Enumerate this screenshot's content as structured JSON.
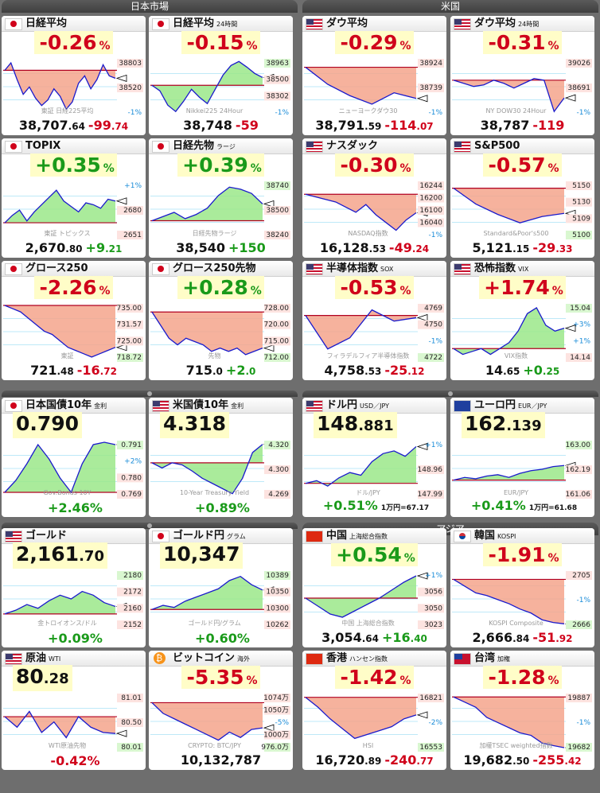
{
  "headers": {
    "japan": "日本市場",
    "us": "米国",
    "asia": "アジア"
  },
  "tiles": [
    {
      "id": "nikkei",
      "name": "日経平均",
      "sub": "",
      "flag": "jp",
      "change": "-0.26",
      "pct": "%",
      "price_int": "38,707",
      "price_dec": ".64",
      "diff_int": "-99",
      "diff_dec": ".74",
      "up": false,
      "right_labels": [
        "38803",
        "38520",
        "-1%"
      ],
      "watermark": "東証 日経225平均"
    },
    {
      "id": "nikkei24",
      "name": "日経平均",
      "sub": "24時間",
      "flag": "jp",
      "change": "-0.15",
      "pct": "%",
      "price_int": "38,748",
      "price_dec": "",
      "diff_int": "-59",
      "diff_dec": "",
      "up": false,
      "right_labels": [
        "38963",
        "38500",
        "38302",
        "-1%"
      ],
      "watermark": "Nikkei225 24Hour"
    },
    {
      "id": "dow",
      "name": "ダウ平均",
      "sub": "",
      "flag": "us",
      "change": "-0.29",
      "pct": "%",
      "price_int": "38,791",
      "price_dec": ".59",
      "diff_int": "-114",
      "diff_dec": ".07",
      "up": false,
      "right_labels": [
        "38924",
        "38739",
        "-1%"
      ],
      "watermark": "ニューヨークダウ30"
    },
    {
      "id": "dow24",
      "name": "ダウ平均",
      "sub": "24時間",
      "flag": "us",
      "change": "-0.31",
      "pct": "%",
      "price_int": "38,787",
      "price_dec": "",
      "diff_int": "-119",
      "diff_dec": "",
      "up": false,
      "right_labels": [
        "39026",
        "38691",
        "-1%"
      ],
      "watermark": "NY DOW30 24Hour"
    },
    {
      "id": "topix",
      "name": "TOPIX",
      "sub": "",
      "flag": "jp",
      "change": "+0.35",
      "pct": "%",
      "price_int": "2,670",
      "price_dec": ".80",
      "diff_int": "+9",
      "diff_dec": ".21",
      "up": true,
      "right_labels": [
        "+1%",
        "2680",
        "2651"
      ],
      "watermark": "東証 トピックス"
    },
    {
      "id": "nkfut",
      "name": "日経先物",
      "sub": "ラージ",
      "flag": "jp",
      "change": "+0.39",
      "pct": "%",
      "price_int": "38,540",
      "price_dec": "",
      "diff_int": "+150",
      "diff_dec": "",
      "up": true,
      "right_labels": [
        "38740",
        "38500",
        "38240"
      ],
      "watermark": "日経先物ラージ"
    },
    {
      "id": "nasdaq",
      "name": "ナスダック",
      "sub": "",
      "flag": "us",
      "change": "-0.30",
      "pct": "%",
      "price_int": "16,128",
      "price_dec": ".53",
      "diff_int": "-49",
      "diff_dec": ".24",
      "up": false,
      "right_labels": [
        "16244",
        "16200",
        "16100",
        "16040",
        "-1%"
      ],
      "watermark": "NASDAQ指数"
    },
    {
      "id": "sp500",
      "name": "S&P500",
      "sub": "",
      "flag": "us",
      "change": "-0.57",
      "pct": "%",
      "price_int": "5,121",
      "price_dec": ".15",
      "diff_int": "-29",
      "diff_dec": ".33",
      "up": false,
      "right_labels": [
        "5150",
        "5130",
        "5109",
        "5100"
      ],
      "watermark": "Standard&Poor's500"
    },
    {
      "id": "growth",
      "name": "グロース250",
      "sub": "",
      "flag": "jp",
      "change": "-2.26",
      "pct": "%",
      "price_int": "721",
      "price_dec": ".48",
      "diff_int": "-16",
      "diff_dec": ".72",
      "up": false,
      "right_labels": [
        "735.00",
        "731.57",
        "725.00",
        "718.72"
      ],
      "watermark": "東証"
    },
    {
      "id": "growthfut",
      "name": "グロース250先物",
      "sub": "",
      "flag": "jp",
      "change": "+0.28",
      "pct": "%",
      "price_int": "715",
      "price_dec": ".0",
      "diff_int": "+2",
      "diff_dec": ".0",
      "up": true,
      "right_labels": [
        "728.00",
        "720.00",
        "715.00",
        "712.00"
      ],
      "watermark": "先物"
    },
    {
      "id": "sox",
      "name": "半導体指数",
      "sub": "SOX",
      "flag": "us",
      "change": "-0.53",
      "pct": "%",
      "price_int": "4,758",
      "price_dec": ".53",
      "diff_int": "-25",
      "diff_dec": ".12",
      "up": false,
      "right_labels": [
        "4769",
        "4750",
        "-1%",
        "4722"
      ],
      "watermark": "フィラデルフィア半導体指数"
    },
    {
      "id": "vix",
      "name": "恐怖指数",
      "sub": "VIX",
      "flag": "us",
      "change": "+1.74",
      "pct": "%",
      "price_int": "14",
      "price_dec": ".65",
      "diff_int": "+0",
      "diff_dec": ".25",
      "up": true,
      "red_up": true,
      "right_labels": [
        "15.04",
        "+3%",
        "+1%",
        "14.14"
      ],
      "watermark": "VIX指数"
    },
    {
      "id": "jgb10",
      "name": "日本国債10年",
      "sub": "金利",
      "flag": "jp",
      "value_int": "0.790",
      "value_dec": "",
      "foot": "+2.46",
      "foot_pct": "%",
      "up": true,
      "right_labels": [
        "0.791",
        "+2%",
        "0.780",
        "0.769"
      ],
      "watermark": "Gov.Bonds 10Y"
    },
    {
      "id": "ust10",
      "name": "米国債10年",
      "sub": "金利",
      "flag": "us",
      "value_int": "4.318",
      "value_dec": "",
      "foot": "+0.89",
      "foot_pct": "%",
      "up": true,
      "right_labels": [
        "4.320",
        "4.300",
        "4.269"
      ],
      "watermark": "10-Year Treasury Yield"
    },
    {
      "id": "usdjpy",
      "name": "ドル円",
      "sub": "USD／JPY",
      "flag": "us",
      "value_int": "148",
      "value_dec": ".881",
      "foot": "+0.51",
      "foot_pct": "%",
      "extra": "1万円=67.17",
      "up": true,
      "right_labels": [
        "+1%",
        "148.96",
        "147.99"
      ],
      "watermark": "ドル/JPY"
    },
    {
      "id": "eurjpy",
      "name": "ユーロ円",
      "sub": "EUR／JPY",
      "flag": "eu",
      "value_int": "162",
      "value_dec": ".139",
      "foot": "+0.41",
      "foot_pct": "%",
      "extra": "1万円=61.68",
      "up": true,
      "right_labels": [
        "163.00",
        "162.19",
        "161.06"
      ],
      "watermark": "EUR/JPY"
    },
    {
      "id": "gold",
      "name": "ゴールド",
      "sub": "",
      "flag": "us",
      "value_int": "2,161",
      "value_dec": ".70",
      "foot": "+0.09",
      "foot_pct": "%",
      "up": true,
      "right_labels": [
        "2180",
        "2172",
        "2160",
        "2152"
      ],
      "watermark": "金トロイオンス/ドル"
    },
    {
      "id": "goldjpy",
      "name": "ゴールド円",
      "sub": "グラム",
      "flag": "jp",
      "value_int": "10,347",
      "value_dec": "",
      "foot": "+0.60",
      "foot_pct": "%",
      "up": true,
      "right_labels": [
        "10389",
        "10350",
        "10300",
        "10262"
      ],
      "watermark": "ゴールド円/グラム"
    },
    {
      "id": "shanghai",
      "name": "中国",
      "sub": "上海総合指数",
      "flag": "cn",
      "change": "+0.54",
      "pct": "%",
      "price_int": "3,054",
      "price_dec": ".64",
      "diff_int": "+16",
      "diff_dec": ".40",
      "up": true,
      "right_labels": [
        "+1%",
        "3056",
        "3050",
        "3023"
      ],
      "watermark": "中国 上海総合指数"
    },
    {
      "id": "kospi",
      "name": "韓国",
      "sub": "KOSPI",
      "flag": "kr",
      "change": "-1.91",
      "pct": "%",
      "price_int": "2,666",
      "price_dec": ".84",
      "diff_int": "-51",
      "diff_dec": ".92",
      "up": false,
      "right_labels": [
        "2705",
        "-1%",
        "2666"
      ],
      "watermark": "KOSPI Composite"
    },
    {
      "id": "wti",
      "name": "原油",
      "sub": "WTI",
      "flag": "us",
      "value_int": "80",
      "value_dec": ".28",
      "foot": "-0.42",
      "foot_pct": "%",
      "up": false,
      "right_labels": [
        "81.01",
        "80.50",
        "80.01"
      ],
      "watermark": "WTI原油先物"
    },
    {
      "id": "btc",
      "name": "ビットコイン",
      "sub": "海外",
      "flag": "btc",
      "change": "-5.35",
      "pct": "%",
      "price_int": "10,132,787",
      "price_dec": "",
      "diff_int": "",
      "diff_dec": "",
      "up": false,
      "right_labels": [
        "1074万",
        "1050万",
        "-5%",
        "1000万",
        "976.0万"
      ],
      "watermark": "CRYPTO: BTC/JPY"
    },
    {
      "id": "hangseng",
      "name": "香港",
      "sub": "ハンセン指数",
      "flag": "hk",
      "change": "-1.42",
      "pct": "%",
      "price_int": "16,720",
      "price_dec": ".89",
      "diff_int": "-240",
      "diff_dec": ".77",
      "up": false,
      "right_labels": [
        "16821",
        "-2%",
        "16553"
      ],
      "watermark": "HSI"
    },
    {
      "id": "taiwan",
      "name": "台湾",
      "sub": "加権",
      "flag": "tw",
      "change": "-1.28",
      "pct": "%",
      "price_int": "19,682",
      "price_dec": ".50",
      "diff_int": "-255",
      "diff_dec": ".42",
      "up": false,
      "right_labels": [
        "19887",
        "-1%",
        "19682"
      ],
      "watermark": "加權TSEC weighted指數"
    }
  ],
  "chart_data": [
    {
      "type": "line",
      "title": "日経平均",
      "values": [
        38750,
        38790,
        38700,
        38620,
        38660,
        38600,
        38560,
        38590,
        38650,
        38610,
        38540,
        38580,
        38680,
        38720,
        38650,
        38700,
        38780,
        38720,
        38707
      ],
      "ylim": [
        38520,
        38803
      ]
    },
    {
      "type": "line",
      "title": "日経平均 24時間",
      "values": [
        38650,
        38580,
        38400,
        38320,
        38450,
        38600,
        38500,
        38420,
        38600,
        38780,
        38900,
        38950,
        38880,
        38800,
        38748
      ],
      "ylim": [
        38302,
        38963
      ]
    },
    {
      "type": "line",
      "title": "ダウ平均",
      "values": [
        38900,
        38840,
        38800,
        38770,
        38810,
        38790
      ],
      "ylim": [
        38739,
        38924
      ]
    },
    {
      "type": "line",
      "title": "ダウ平均 24時間",
      "values": [
        38900,
        38880,
        38860,
        38870,
        38900,
        38880,
        38850,
        38880,
        38910,
        38900,
        38700,
        38787
      ],
      "ylim": [
        38691,
        39026
      ]
    },
    {
      "type": "line",
      "title": "TOPIX",
      "values": [
        2658,
        2662,
        2665,
        2659,
        2664,
        2668,
        2672,
        2676,
        2670,
        2667,
        2664,
        2669,
        2668,
        2666,
        2671,
        2670
      ],
      "ylim": [
        2651,
        2680
      ]
    },
    {
      "type": "line",
      "title": "日経先物",
      "values": [
        38380,
        38420,
        38460,
        38400,
        38440,
        38500,
        38620,
        38700,
        38680,
        38640,
        38540
      ],
      "ylim": [
        38240,
        38740
      ]
    },
    {
      "type": "line",
      "title": "ナスダック",
      "values": [
        16200,
        16190,
        16180,
        16170,
        16150,
        16130,
        16160,
        16120,
        16090,
        16060,
        16100,
        16128
      ],
      "ylim": [
        16040,
        16244
      ]
    },
    {
      "type": "line",
      "title": "S&P500",
      "values": [
        5145,
        5130,
        5120,
        5112,
        5118,
        5121
      ],
      "ylim": [
        5100,
        5150
      ]
    },
    {
      "type": "line",
      "title": "グロース250",
      "values": [
        735,
        734,
        733,
        731,
        729,
        727,
        726,
        724,
        722,
        721,
        720,
        719,
        720,
        721,
        722
      ],
      "ylim": [
        718.72,
        735
      ]
    },
    {
      "type": "line",
      "title": "グロース250先物",
      "values": [
        726,
        722,
        718,
        716,
        718,
        717,
        716,
        714,
        715,
        714,
        715,
        713,
        714,
        715
      ],
      "ylim": [
        712,
        728
      ]
    },
    {
      "type": "line",
      "title": "半導体指数",
      "values": [
        4760,
        4730,
        4740,
        4765,
        4755,
        4758
      ],
      "ylim": [
        4722,
        4769
      ]
    },
    {
      "type": "line",
      "title": "恐怖指数",
      "values": [
        14.3,
        14.2,
        14.25,
        14.3,
        14.2,
        14.3,
        14.4,
        14.6,
        14.9,
        15.0,
        14.7,
        14.6,
        14.65
      ],
      "ylim": [
        14.14,
        15.04
      ]
    },
    {
      "type": "line",
      "title": "日本国債10年",
      "values": [
        0.77,
        0.775,
        0.782,
        0.79,
        0.784,
        0.776,
        0.77,
        0.782,
        0.79,
        0.791,
        0.79
      ],
      "ylim": [
        0.769,
        0.791
      ]
    },
    {
      "type": "line",
      "title": "米国債10年",
      "values": [
        4.3,
        4.295,
        4.3,
        4.298,
        4.292,
        4.285,
        4.28,
        4.275,
        4.27,
        4.285,
        4.31,
        4.318
      ],
      "ylim": [
        4.269,
        4.32
      ]
    },
    {
      "type": "line",
      "title": "ドル円",
      "values": [
        148.2,
        148.25,
        148.15,
        148.3,
        148.4,
        148.35,
        148.6,
        148.75,
        148.8,
        148.7,
        148.88
      ],
      "ylim": [
        147.99,
        148.96
      ]
    },
    {
      "type": "line",
      "title": "ユーロ円",
      "values": [
        161.6,
        161.7,
        161.65,
        161.75,
        161.8,
        161.7,
        161.85,
        161.95,
        162.0,
        162.1,
        162.14
      ],
      "ylim": [
        161.06,
        163.0
      ]
    },
    {
      "type": "line",
      "title": "ゴールド",
      "values": [
        2158,
        2160,
        2163,
        2161,
        2165,
        2168,
        2166,
        2170,
        2168,
        2164,
        2162
      ],
      "ylim": [
        2152,
        2180
      ]
    },
    {
      "type": "line",
      "title": "ゴールド円",
      "values": [
        10300,
        10310,
        10305,
        10320,
        10330,
        10340,
        10350,
        10370,
        10380,
        10360,
        10347
      ],
      "ylim": [
        10262,
        10389
      ]
    },
    {
      "type": "line",
      "title": "中国 上海総合指数",
      "values": [
        3040,
        3035,
        3030,
        3028,
        3032,
        3036,
        3040,
        3045,
        3050,
        3054
      ],
      "ylim": [
        3023,
        3056
      ]
    },
    {
      "type": "line",
      "title": "韓国 KOSPI",
      "values": [
        2700,
        2695,
        2690,
        2688,
        2685,
        2682,
        2678,
        2675,
        2670,
        2668,
        2667
      ],
      "ylim": [
        2666,
        2705
      ]
    },
    {
      "type": "line",
      "title": "原油 WTI",
      "values": [
        80.6,
        80.4,
        80.7,
        80.3,
        80.5,
        80.2,
        80.6,
        80.4,
        80.3,
        80.28
      ],
      "ylim": [
        80.01,
        81.01
      ]
    },
    {
      "type": "line",
      "title": "ビットコイン",
      "values": [
        1060,
        1040,
        1030,
        1020,
        1010,
        1000,
        990,
        1005,
        995,
        1010,
        1013
      ],
      "ylim": [
        976,
        1074
      ]
    },
    {
      "type": "line",
      "title": "香港 ハンセン指数",
      "values": [
        16810,
        16760,
        16700,
        16650,
        16600,
        16620,
        16640,
        16660,
        16700,
        16720
      ],
      "ylim": [
        16553,
        16821
      ]
    },
    {
      "type": "line",
      "title": "台湾 加権",
      "values": [
        19880,
        19860,
        19840,
        19800,
        19780,
        19760,
        19740,
        19730,
        19700,
        19690,
        19682
      ],
      "ylim": [
        19682,
        19887
      ]
    }
  ]
}
